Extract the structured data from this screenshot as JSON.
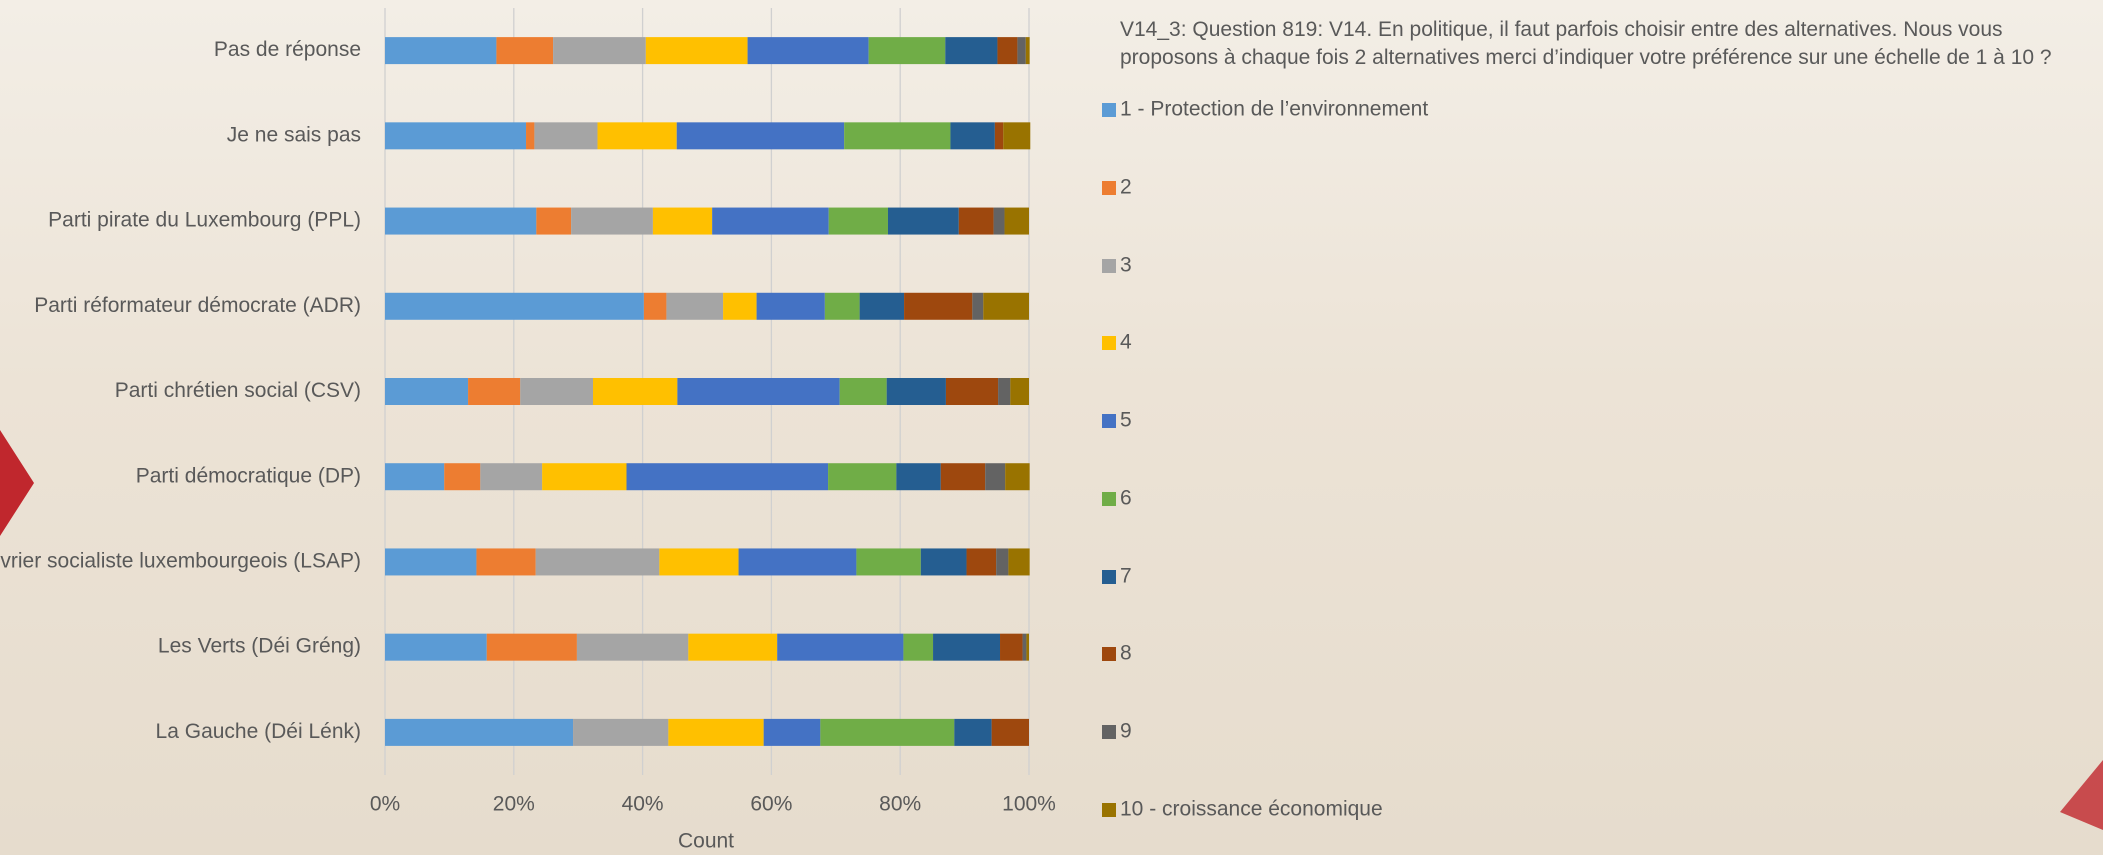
{
  "chart_data": {
    "type": "stacked-bar-horizontal",
    "title": "V14_3: Question 819: V14. En politique, il faut parfois choisir entre des alternatives. Nous vous proposons à chaque fois 2 alternatives merci d’indiquer votre préférence sur une échelle de 1 à 10 ?",
    "x_label": "Count",
    "categories": [
      "Pas de réponse",
      "Je ne sais pas",
      "Parti pirate du Luxembourg (PPL)",
      "Parti réformateur démocrate (ADR)",
      "Parti chrétien social (CSV)",
      "Parti démocratique (DP)",
      "Parti ouvrier socialiste luxembourgeois (LSAP)",
      "Les Verts (Déi Gréng)",
      "La Gauche (Déi Lénk)"
    ],
    "series": [
      {
        "name": "1 - Protection de l’environnement",
        "color": "#5b9bd5",
        "values": [
          17.3,
          21.9,
          23.5,
          40.2,
          12.9,
          9.2,
          14.2,
          15.8,
          29.2
        ]
      },
      {
        "name": "2",
        "color": "#ed7d31",
        "values": [
          8.8,
          1.3,
          5.4,
          3.5,
          8.1,
          5.6,
          9.2,
          14.0,
          0
        ]
      },
      {
        "name": "3",
        "color": "#a5a5a5",
        "values": [
          14.4,
          9.8,
          12.7,
          8.8,
          11.3,
          9.6,
          19.2,
          17.3,
          14.8
        ]
      },
      {
        "name": "4",
        "color": "#ffc000",
        "values": [
          15.8,
          12.3,
          9.2,
          5.2,
          13.1,
          13.1,
          12.3,
          13.8,
          14.8
        ]
      },
      {
        "name": "5",
        "color": "#4472c4",
        "values": [
          18.8,
          26.0,
          18.1,
          10.6,
          25.2,
          31.3,
          18.3,
          19.6,
          8.8
        ]
      },
      {
        "name": "6",
        "color": "#70ad47",
        "values": [
          11.9,
          16.5,
          9.2,
          5.4,
          7.3,
          10.6,
          10.0,
          4.6,
          20.8
        ]
      },
      {
        "name": "7",
        "color": "#255e91",
        "values": [
          8.1,
          6.9,
          11.0,
          6.9,
          9.2,
          6.9,
          7.1,
          10.4,
          5.8
        ]
      },
      {
        "name": "8",
        "color": "#9e480e",
        "values": [
          3.1,
          1.3,
          5.4,
          10.6,
          8.1,
          6.9,
          4.6,
          3.5,
          5.8
        ]
      },
      {
        "name": "9",
        "color": "#636363",
        "values": [
          1.3,
          0,
          1.7,
          1.7,
          1.9,
          3.1,
          1.9,
          0.6,
          0
        ]
      },
      {
        "name": "10 - croissance économique",
        "color": "#997300",
        "values": [
          0.6,
          4.2,
          3.8,
          7.1,
          2.9,
          3.8,
          3.3,
          0.4,
          0
        ]
      }
    ],
    "xlim": [
      0,
      100
    ],
    "xticks": [
      {
        "value": 0,
        "label": "0%"
      },
      {
        "value": 20,
        "label": "20%"
      },
      {
        "value": 40,
        "label": "40%"
      },
      {
        "value": 60,
        "label": "60%"
      },
      {
        "value": 80,
        "label": "80%"
      },
      {
        "value": 100,
        "label": "100%"
      }
    ],
    "grid": true,
    "legend": "right"
  }
}
